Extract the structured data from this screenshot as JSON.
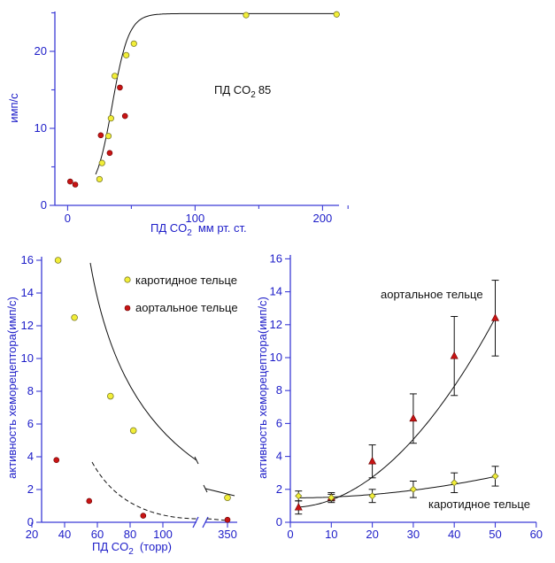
{
  "colors": {
    "axis": "#3b3bd6",
    "label": "#1c1cc8",
    "yellow": "#f2ee38",
    "red": "#c81414"
  },
  "chart_data": [
    {
      "type": "scatter",
      "xlabel_main": "ПД CO",
      "xlabel_sub": "2",
      "xlabel_rest": "мм рт. ст.",
      "ylabel": "имп/с",
      "annotation_main": "ПД CO",
      "annotation_sub": "2",
      "annotation_rest": "85",
      "xlim": [
        -10,
        225
      ],
      "ylim": [
        0,
        25.5
      ],
      "x_ticks": [
        0,
        100,
        200
      ],
      "y_ticks": [
        0,
        10,
        20
      ],
      "series": [
        {
          "color": "yellow",
          "points": [
            [
              25,
              3.4
            ],
            [
              27,
              5.5
            ],
            [
              32,
              9
            ],
            [
              34,
              11.3
            ],
            [
              37,
              16.8
            ],
            [
              46,
              19.5
            ],
            [
              52,
              21
            ],
            [
              140,
              24.7
            ],
            [
              211,
              24.8
            ]
          ]
        },
        {
          "color": "red",
          "points": [
            [
              2,
              3.1
            ],
            [
              6,
              2.7
            ],
            [
              26,
              9.1
            ],
            [
              33,
              6.8
            ],
            [
              41,
              15.3
            ],
            [
              45,
              11.6
            ]
          ]
        }
      ]
    },
    {
      "type": "scatter",
      "xlabel_main": "ПД CO",
      "xlabel_sub": "2",
      "xlabel_rest": "(торр)",
      "ylabel": "активность хеморецептора(имп/с)",
      "x_tick_labels": [
        "20",
        "40",
        "60",
        "80",
        "100",
        "350"
      ],
      "y_ticks": [
        0,
        2,
        4,
        6,
        8,
        10,
        12,
        14,
        16
      ],
      "ylim": [
        0,
        16.5
      ],
      "axis_break": "between 100 and 350",
      "series": [
        {
          "name": "каротидное тельце",
          "color": "yellow",
          "points": [
            [
              36,
              16
            ],
            [
              46,
              12.5
            ],
            [
              68,
              7.7
            ],
            [
              82,
              5.6
            ],
            [
              350,
              1.5
            ]
          ]
        },
        {
          "name": "аортальное тельце",
          "color": "red",
          "points": [
            [
              35,
              3.8
            ],
            [
              55,
              1.3
            ],
            [
              88,
              0.4
            ],
            [
              350,
              0.15
            ]
          ]
        }
      ]
    },
    {
      "type": "line",
      "ylabel": "активность хеморецептора(имп/с)",
      "x_ticks": [
        0,
        10,
        20,
        30,
        40,
        50,
        60
      ],
      "y_ticks": [
        0,
        2,
        4,
        6,
        8,
        10,
        12,
        14,
        16
      ],
      "xlim": [
        0,
        60
      ],
      "ylim": [
        0,
        16.5
      ],
      "series": [
        {
          "name": "аортальное тельце",
          "color": "red",
          "marker": "triangle",
          "x": [
            2,
            10,
            20,
            30,
            40,
            50
          ],
          "y": [
            0.9,
            1.5,
            3.7,
            6.3,
            10.1,
            12.4
          ],
          "err": [
            0.4,
            0.2,
            1.0,
            1.5,
            2.4,
            2.3
          ]
        },
        {
          "name": "каротидное тельце",
          "color": "yellow",
          "marker": "diamond",
          "x": [
            2,
            10,
            20,
            30,
            40,
            50
          ],
          "y": [
            1.6,
            1.5,
            1.6,
            2.0,
            2.4,
            2.8
          ],
          "err": [
            0.3,
            0.3,
            0.4,
            0.5,
            0.6,
            0.6
          ]
        }
      ]
    }
  ]
}
